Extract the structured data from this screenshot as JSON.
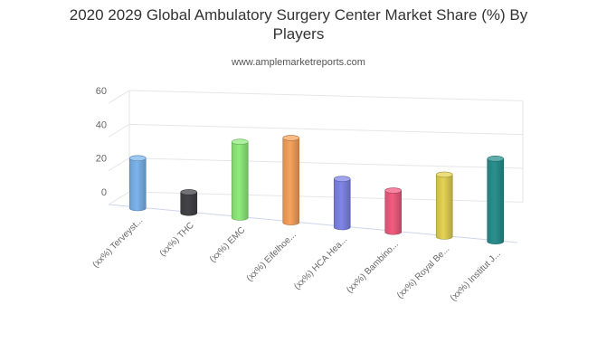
{
  "chart_data": {
    "type": "bar",
    "title_line1": "2020 2029 Global Ambulatory Surgery Center Market Share (%) By",
    "title_line2": "Players",
    "subtitle": "www.amplemarketreports.com",
    "categories": [
      "(xx%) Terveyst...",
      "(xx%) THC",
      "(xx%) EMC",
      "(xx%) Eifelhoe...",
      "(xx%) HCA Hea...",
      "(xx%) Bambino...",
      "(xx%) Royal Be...",
      "(xx%) Institut J..."
    ],
    "values": [
      29,
      12,
      44,
      49,
      28,
      24,
      36,
      48
    ],
    "colors": [
      "#7cb5ec",
      "#434348",
      "#90ed7d",
      "#f7a35c",
      "#8085e9",
      "#f15c80",
      "#e4d354",
      "#2b908f"
    ],
    "yticks": [
      0,
      20,
      40,
      60
    ],
    "ylim": [
      0,
      60
    ],
    "grid": true,
    "style": "3d-cylinder"
  }
}
